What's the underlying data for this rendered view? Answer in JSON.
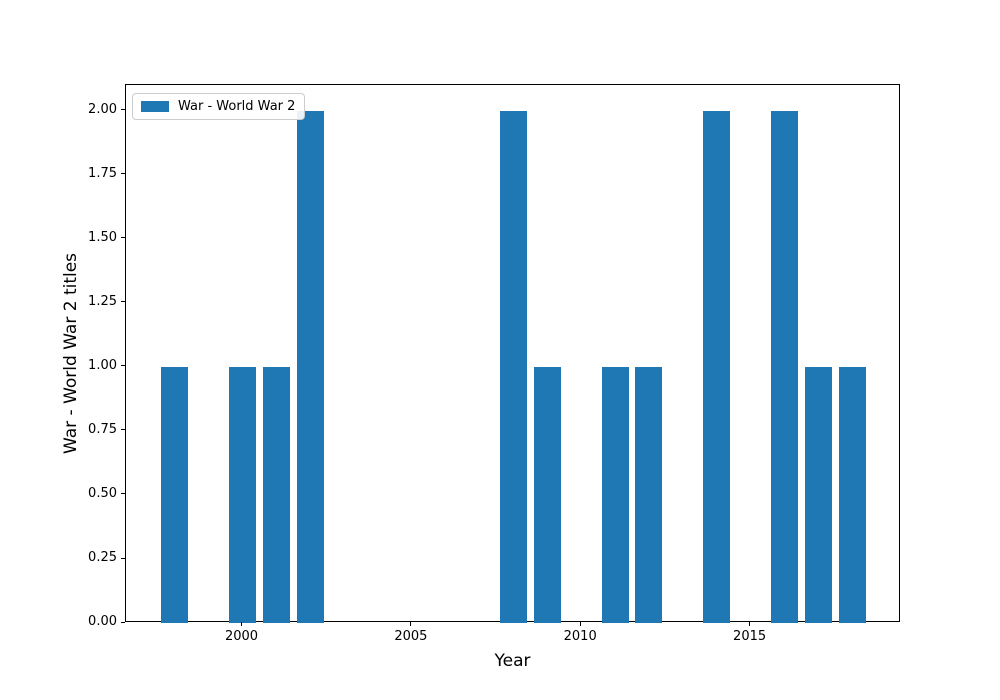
{
  "figure": {
    "background": "#ffffff",
    "frame_color": "#000000"
  },
  "chart_data": {
    "type": "bar",
    "title": "",
    "xlabel": "Year",
    "ylabel": "War - World War 2 titles",
    "bar_color": "#1f77b4",
    "categories": [
      1998,
      2000,
      2001,
      2002,
      2008,
      2009,
      2011,
      2012,
      2014,
      2016,
      2017,
      2018
    ],
    "values": [
      1,
      1,
      1,
      2,
      2,
      1,
      1,
      1,
      2,
      2,
      1,
      1
    ],
    "bar_width_years": 0.8,
    "xlim": [
      1996.56,
      2019.44
    ],
    "ylim": [
      0,
      2.1
    ],
    "xticks": [
      "2000",
      "2005",
      "2010",
      "2015"
    ],
    "xtick_values": [
      2000,
      2005,
      2010,
      2015
    ],
    "yticks": [
      "0.00",
      "0.25",
      "0.50",
      "0.75",
      "1.00",
      "1.25",
      "1.50",
      "1.75",
      "2.00"
    ],
    "ytick_values": [
      0,
      0.25,
      0.5,
      0.75,
      1.0,
      1.25,
      1.5,
      1.75,
      2.0
    ],
    "grid": false,
    "legend": {
      "position": "upper left",
      "entries": [
        {
          "label": "War - World War 2",
          "color": "#1f77b4"
        }
      ]
    }
  }
}
